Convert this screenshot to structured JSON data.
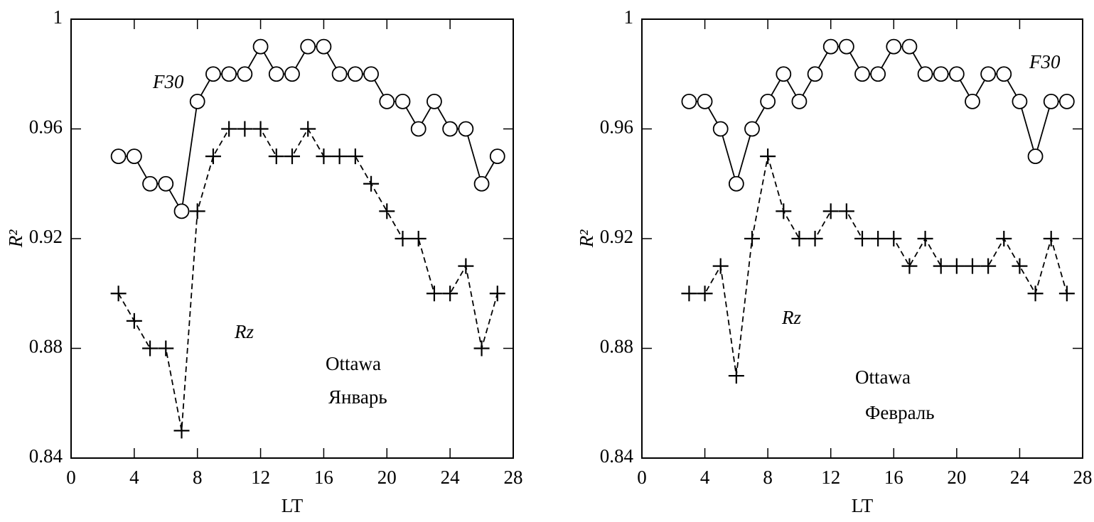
{
  "chart_data": [
    {
      "type": "line",
      "xlabel": "LT",
      "ylabel": "R²",
      "annotations": [
        "Ottawa",
        "Январь"
      ],
      "x": [
        3,
        4,
        5,
        6,
        7,
        8,
        9,
        10,
        11,
        12,
        13,
        14,
        15,
        16,
        17,
        18,
        19,
        20,
        21,
        22,
        23,
        24,
        25,
        26,
        27
      ],
      "series": [
        {
          "name": "F30",
          "color": "#000000",
          "marker": "circle",
          "linestyle": "solid",
          "values": [
            0.95,
            0.95,
            0.94,
            0.94,
            0.93,
            0.97,
            0.98,
            0.98,
            0.98,
            0.99,
            0.98,
            0.98,
            0.99,
            0.99,
            0.98,
            0.98,
            0.98,
            0.97,
            0.97,
            0.96,
            0.97,
            0.96,
            0.96,
            0.94,
            0.95
          ]
        },
        {
          "name": "Rz",
          "color": "#000000",
          "marker": "plus",
          "linestyle": "dashed",
          "values": [
            0.9,
            0.89,
            0.88,
            0.88,
            0.85,
            0.93,
            0.95,
            0.96,
            0.96,
            0.96,
            0.95,
            0.95,
            0.96,
            0.95,
            0.95,
            0.95,
            0.94,
            0.93,
            0.92,
            0.92,
            0.9,
            0.9,
            0.91,
            0.88,
            0.9
          ]
        }
      ],
      "xlim": [
        0,
        28
      ],
      "xticks": [
        0,
        4,
        8,
        12,
        16,
        20,
        24,
        28
      ],
      "ylim": [
        0.84,
        1
      ],
      "yticks": [
        0.84,
        0.88,
        0.92,
        0.96,
        1
      ]
    },
    {
      "type": "line",
      "xlabel": "LT",
      "ylabel": "R²",
      "annotations": [
        "Ottawa",
        "Февраль"
      ],
      "x": [
        3,
        4,
        5,
        6,
        7,
        8,
        9,
        10,
        11,
        12,
        13,
        14,
        15,
        16,
        17,
        18,
        19,
        20,
        21,
        22,
        23,
        24,
        25,
        26,
        27
      ],
      "series": [
        {
          "name": "F30",
          "color": "#000000",
          "marker": "circle",
          "linestyle": "solid",
          "values": [
            0.97,
            0.97,
            0.96,
            0.94,
            0.96,
            0.97,
            0.98,
            0.97,
            0.98,
            0.99,
            0.99,
            0.98,
            0.98,
            0.99,
            0.99,
            0.98,
            0.98,
            0.98,
            0.97,
            0.98,
            0.98,
            0.97,
            0.95,
            0.97,
            0.97
          ]
        },
        {
          "name": "Rz",
          "color": "#000000",
          "marker": "plus",
          "linestyle": "dashed",
          "values": [
            0.9,
            0.9,
            0.91,
            0.87,
            0.92,
            0.95,
            0.93,
            0.92,
            0.92,
            0.93,
            0.93,
            0.92,
            0.92,
            0.92,
            0.91,
            0.92,
            0.91,
            0.91,
            0.91,
            0.91,
            0.92,
            0.91,
            0.9,
            0.92,
            0.9
          ]
        }
      ],
      "xlim": [
        0,
        28
      ],
      "xticks": [
        0,
        4,
        8,
        12,
        16,
        20,
        24,
        28
      ],
      "ylim": [
        0.84,
        1
      ],
      "yticks": [
        0.84,
        0.88,
        0.92,
        0.96,
        1
      ]
    }
  ]
}
